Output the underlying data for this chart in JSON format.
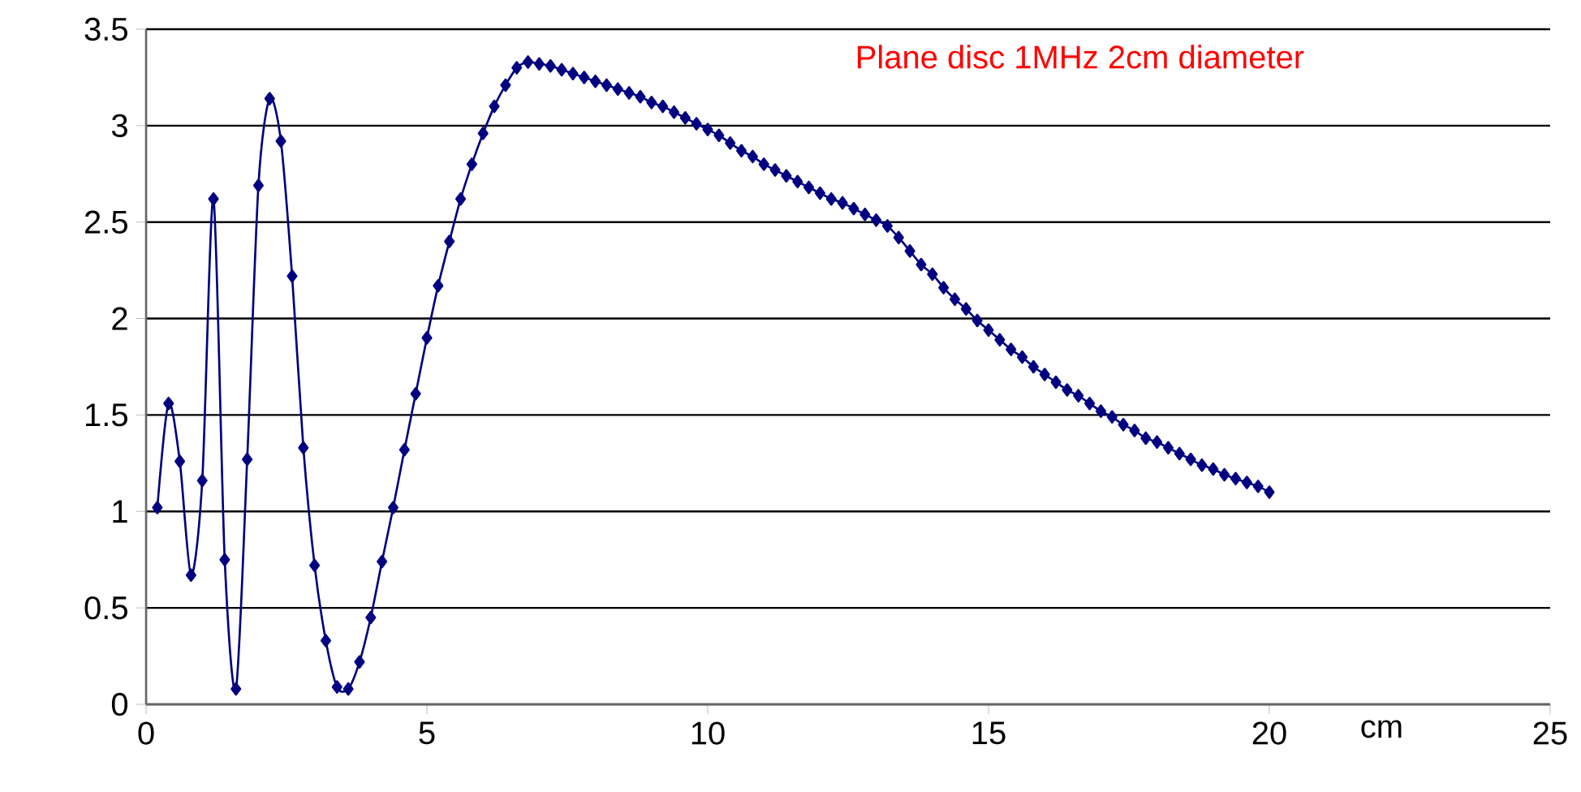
{
  "chart_data": {
    "type": "line",
    "title": "Plane disc 1MHz 2cm diameter",
    "xlabel": "cm",
    "x": [
      0.2,
      0.4,
      0.6,
      0.8,
      1.0,
      1.2,
      1.4,
      1.6,
      1.8,
      2.0,
      2.2,
      2.4,
      2.6,
      2.8,
      3.0,
      3.2,
      3.4,
      3.6,
      3.8,
      4.0,
      4.2,
      4.4,
      4.6,
      4.8,
      5.0,
      5.2,
      5.4,
      5.6,
      5.8,
      6.0,
      6.2,
      6.4,
      6.6,
      6.8,
      7.0,
      7.2,
      7.4,
      7.6,
      7.8,
      8.0,
      8.2,
      8.4,
      8.6,
      8.8,
      9.0,
      9.2,
      9.4,
      9.6,
      9.8,
      10.0,
      10.2,
      10.4,
      10.6,
      10.8,
      11.0,
      11.2,
      11.4,
      11.6,
      11.8,
      12.0,
      12.2,
      12.4,
      12.6,
      12.8,
      13.0,
      13.2,
      13.4,
      13.6,
      13.8,
      14.0,
      14.2,
      14.4,
      14.6,
      14.8,
      15.0,
      15.2,
      15.4,
      15.6,
      15.8,
      16.0,
      16.2,
      16.4,
      16.6,
      16.8,
      17.0,
      17.2,
      17.4,
      17.6,
      17.8,
      18.0,
      18.2,
      18.4,
      18.6,
      18.8,
      19.0,
      19.2,
      19.4,
      19.6,
      19.8,
      20.0
    ],
    "values": [
      1.02,
      1.56,
      1.26,
      0.67,
      1.16,
      2.62,
      0.75,
      0.08,
      1.27,
      2.69,
      3.14,
      2.92,
      2.22,
      1.33,
      0.72,
      0.33,
      0.09,
      0.08,
      0.22,
      0.45,
      0.74,
      1.02,
      1.32,
      1.61,
      1.9,
      2.17,
      2.4,
      2.62,
      2.8,
      2.96,
      3.1,
      3.21,
      3.3,
      3.33,
      3.32,
      3.31,
      3.29,
      3.27,
      3.25,
      3.23,
      3.21,
      3.19,
      3.17,
      3.15,
      3.12,
      3.1,
      3.07,
      3.04,
      3.01,
      2.98,
      2.95,
      2.91,
      2.87,
      2.84,
      2.8,
      2.77,
      2.74,
      2.71,
      2.68,
      2.65,
      2.62,
      2.6,
      2.57,
      2.54,
      2.51,
      2.48,
      2.42,
      2.35,
      2.28,
      2.23,
      2.16,
      2.1,
      2.05,
      1.99,
      1.94,
      1.89,
      1.84,
      1.8,
      1.75,
      1.71,
      1.67,
      1.63,
      1.6,
      1.56,
      1.52,
      1.49,
      1.45,
      1.42,
      1.38,
      1.36,
      1.33,
      1.3,
      1.27,
      1.24,
      1.22,
      1.19,
      1.17,
      1.15,
      1.13,
      1.1
    ],
    "color": "#000080",
    "marker": "diamond",
    "xlim": [
      0,
      25
    ],
    "ylim": [
      0,
      3.5
    ],
    "xticks": [
      0,
      5,
      10,
      15,
      20,
      25
    ],
    "yticks": [
      0,
      0.5,
      1,
      1.5,
      2,
      2.5,
      3,
      3.5
    ],
    "grid": "y"
  }
}
